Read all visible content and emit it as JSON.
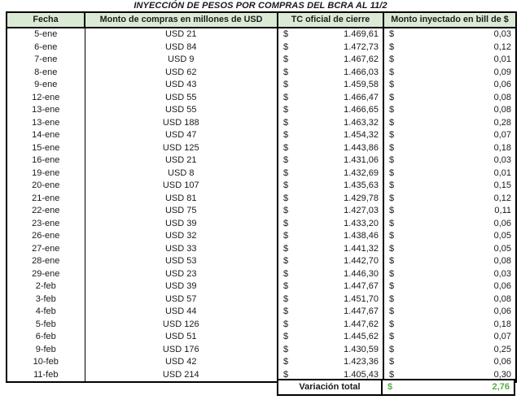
{
  "title": "INYECCIÓN DE PESOS POR COMPRAS DEL BCRA AL 11/2",
  "colors": {
    "header_bg": "#dbead5",
    "total_green": "#53ad41",
    "border": "#000000"
  },
  "chart_data": {
    "type": "table",
    "title": "INYECCIÓN DE PESOS POR COMPRAS DEL BCRA AL 11/2",
    "columns": [
      "Fecha",
      "Monto de compras en millones de USD",
      "TC oficial de cierre",
      "Monto inyectado en bill de $"
    ],
    "currency_symbol": "$",
    "rows": [
      [
        "5-ene",
        "USD 21",
        "1.469,61",
        "0,03"
      ],
      [
        "6-ene",
        "USD 84",
        "1.472,73",
        "0,12"
      ],
      [
        "7-ene",
        "USD 9",
        "1.467,62",
        "0,01"
      ],
      [
        "8-ene",
        "USD 62",
        "1.466,03",
        "0,09"
      ],
      [
        "9-ene",
        "USD 43",
        "1.459,58",
        "0,06"
      ],
      [
        "12-ene",
        "USD 55",
        "1.466,47",
        "0,08"
      ],
      [
        "13-ene",
        "USD 55",
        "1.466,65",
        "0,08"
      ],
      [
        "13-ene",
        "USD 188",
        "1.463,32",
        "0,28"
      ],
      [
        "14-ene",
        "USD 47",
        "1.454,32",
        "0,07"
      ],
      [
        "15-ene",
        "USD 125",
        "1.443,86",
        "0,18"
      ],
      [
        "16-ene",
        "USD 21",
        "1.431,06",
        "0,03"
      ],
      [
        "19-ene",
        "USD 8",
        "1.432,69",
        "0,01"
      ],
      [
        "20-ene",
        "USD 107",
        "1.435,63",
        "0,15"
      ],
      [
        "21-ene",
        "USD 81",
        "1.429,78",
        "0,12"
      ],
      [
        "22-ene",
        "USD 75",
        "1.427,03",
        "0,11"
      ],
      [
        "23-ene",
        "USD 39",
        "1.433,20",
        "0,06"
      ],
      [
        "26-ene",
        "USD 32",
        "1.438,46",
        "0,05"
      ],
      [
        "27-ene",
        "USD 33",
        "1.441,32",
        "0,05"
      ],
      [
        "28-ene",
        "USD 53",
        "1.442,70",
        "0,08"
      ],
      [
        "29-ene",
        "USD 23",
        "1.446,30",
        "0,03"
      ],
      [
        "2-feb",
        "USD 39",
        "1.447,67",
        "0,06"
      ],
      [
        "3-feb",
        "USD 57",
        "1.451,70",
        "0,08"
      ],
      [
        "4-feb",
        "USD 44",
        "1.447,67",
        "0,06"
      ],
      [
        "5-feb",
        "USD 126",
        "1.447,62",
        "0,18"
      ],
      [
        "6-feb",
        "USD 51",
        "1.445,62",
        "0,07"
      ],
      [
        "9-feb",
        "USD 176",
        "1.430,59",
        "0,25"
      ],
      [
        "10-feb",
        "USD 42",
        "1.423,36",
        "0,06"
      ],
      [
        "11-feb",
        "USD 214",
        "1.405,43",
        "0,30"
      ]
    ],
    "footer": {
      "label": "Variación total",
      "currency": "$",
      "value": "2,76"
    }
  }
}
